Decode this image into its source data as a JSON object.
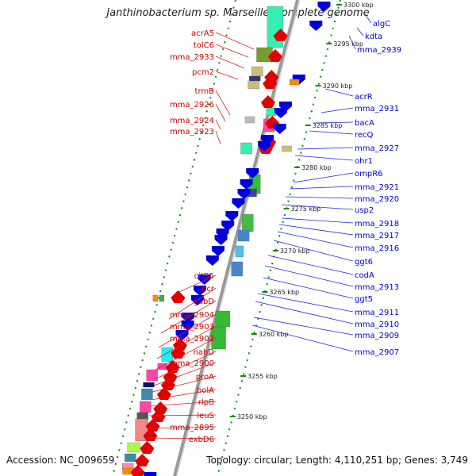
{
  "title": "Janthinobacterium sp. Marseille, complete genome",
  "footer": {
    "accession_label": "Accession:",
    "accession": "NC_009659",
    "topology_label": "Topology:",
    "topology": "circular",
    "length_label": "Length:",
    "length": "4,110,251 bp",
    "genes_label": "Genes:",
    "genes": "3,749"
  },
  "colors": {
    "reverse_strand": "#e00000",
    "forward_strand": "#0000dd",
    "backbone": "#999999",
    "tick": "#0a8a0a",
    "label_left": "#cc0000",
    "label_right": "#0000cc"
  },
  "kbp_ticks": [
    "3300 kbp",
    "3295 kbp",
    "3290 kbp",
    "3285 kbp",
    "3280 kbp",
    "3275 kbp",
    "3270 kbp",
    "3265 kbp",
    "3260 kbp",
    "3255 kbp",
    "3250 kbp"
  ],
  "left_labels": [
    "acrA5",
    "tolC6",
    "mma_2933",
    "pcm2",
    "trmB",
    "mma_2926",
    "mma_2924",
    "mma_2923",
    "citB5",
    "bcr",
    "gabD",
    "mma_2904",
    "mma_2903",
    "mma_2902",
    "nahD",
    "mma_2900",
    "proA",
    "holA",
    "rlpB",
    "leuS",
    "mma_2895",
    "exbD6"
  ],
  "right_labels": [
    "algC",
    "kdta",
    "mma_2939",
    "acrR",
    "mma_2931",
    "bacA",
    "recQ",
    "mma_2927",
    "ohr1",
    "ompR6",
    "mma_2921",
    "mma_2920",
    "usp2",
    "mma_2918",
    "mma_2917",
    "mma_2916",
    "ggt6",
    "codA",
    "mma_2913",
    "ggt5",
    "mma_2911",
    "mma_2910",
    "mma_2909",
    "mma_2907"
  ]
}
